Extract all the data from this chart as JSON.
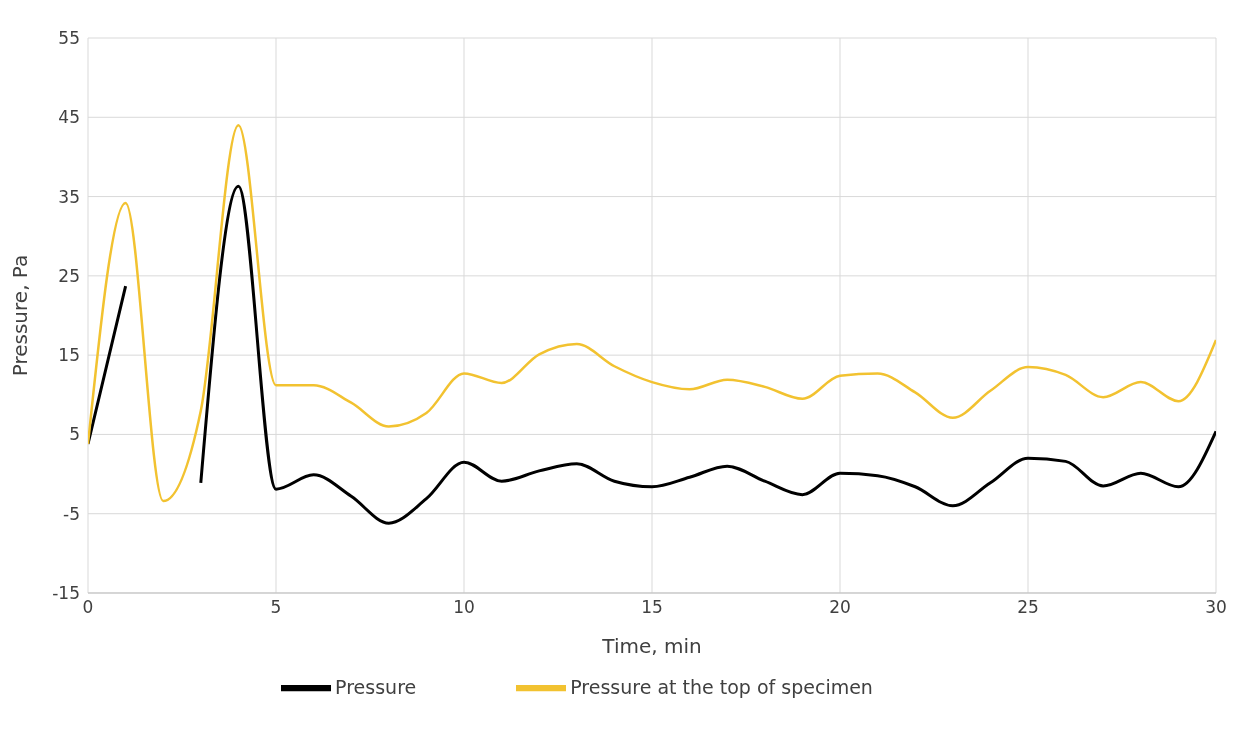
{
  "chart_data": {
    "type": "line",
    "xlabel": "Time, min",
    "ylabel": "Pressure, Pa",
    "x": [
      0,
      1,
      2,
      3,
      4,
      5,
      6,
      7,
      8,
      9,
      10,
      11,
      12,
      13,
      14,
      15,
      16,
      17,
      18,
      19,
      20,
      21,
      22,
      23,
      24,
      25,
      26,
      27,
      28,
      29,
      30
    ],
    "series": [
      {
        "name": "Pressure",
        "color": "#000000",
        "values": [
          3.8,
          23.7,
          null,
          -1.1,
          36.3,
          -1.9,
          -0.1,
          -2.8,
          -6.2,
          -3.1,
          1.5,
          -0.9,
          0.4,
          1.3,
          -0.9,
          -1.6,
          -0.4,
          1.0,
          -0.9,
          -2.6,
          0.1,
          -0.2,
          -1.6,
          -4.0,
          -1.1,
          2.0,
          1.6,
          -1.5,
          0.1,
          -1.6,
          5.4
        ]
      },
      {
        "name": "Pressure at the top of specimen",
        "color": "#f2c230",
        "values": [
          3.8,
          34.2,
          -3.4,
          8,
          44,
          11.2,
          11.2,
          9,
          6,
          7.7,
          12.7,
          11.5,
          15.1,
          16.4,
          13.6,
          11.6,
          10.7,
          11.9,
          11,
          9.5,
          12.4,
          12.7,
          10.3,
          7.1,
          10.5,
          13.5,
          12.5,
          9.7,
          11.6,
          9.2,
          16.9
        ]
      }
    ],
    "xlim": [
      0,
      30
    ],
    "xticks": [
      0,
      5,
      10,
      15,
      20,
      25,
      30
    ],
    "ylim": [
      -15,
      55
    ],
    "yticks": [
      -15,
      -5,
      5,
      15,
      25,
      35,
      45,
      55
    ],
    "grid": true,
    "legend": "bottom",
    "marker": "none",
    "line_style": "solid"
  }
}
